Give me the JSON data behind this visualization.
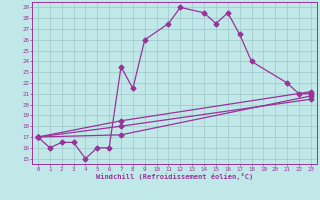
{
  "background_color": "#c0e8e8",
  "grid_color": "#a0c8c8",
  "line_color": "#993399",
  "xlabel": "Windchill (Refroidissement éolien,°C)",
  "xlim": [
    -0.5,
    23.5
  ],
  "ylim": [
    14.5,
    29.5
  ],
  "yticks": [
    15,
    16,
    17,
    18,
    19,
    20,
    21,
    22,
    23,
    24,
    25,
    26,
    27,
    28,
    29
  ],
  "xticks": [
    0,
    1,
    2,
    3,
    4,
    5,
    6,
    7,
    8,
    9,
    10,
    11,
    12,
    13,
    14,
    15,
    16,
    17,
    18,
    19,
    20,
    21,
    22,
    23
  ],
  "line1_x": [
    0,
    1,
    2,
    3,
    4,
    5,
    6,
    7,
    8,
    9,
    11,
    12,
    14,
    15,
    16,
    17,
    18,
    21,
    22,
    23
  ],
  "line1_y": [
    17,
    16,
    16.5,
    16.5,
    15,
    16,
    16,
    23.5,
    21.5,
    26,
    27.5,
    29,
    28.5,
    27.5,
    28.5,
    26.5,
    24,
    22,
    21,
    21
  ],
  "line2_x": [
    0,
    7,
    23
  ],
  "line2_y": [
    17,
    18,
    20.5
  ],
  "line3_x": [
    0,
    7,
    23
  ],
  "line3_y": [
    17,
    18.5,
    21.2
  ],
  "line4_x": [
    0,
    7,
    23
  ],
  "line4_y": [
    17,
    17.2,
    20.8
  ],
  "markersize": 2.5,
  "linewidth": 0.9
}
